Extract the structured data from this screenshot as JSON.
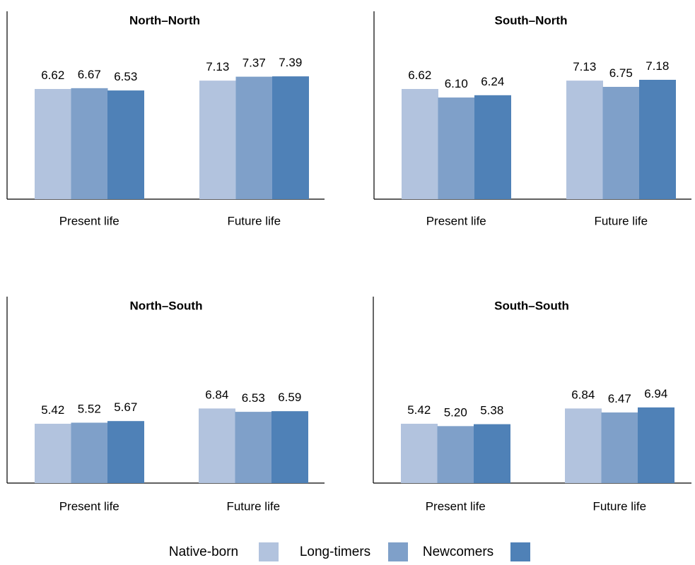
{
  "chart_data": [
    {
      "type": "bar",
      "title": "North–North",
      "categories": [
        "Present life",
        "Future life"
      ],
      "series": [
        {
          "name": "Native-born",
          "values": [
            6.62,
            7.13
          ]
        },
        {
          "name": "Long-timers",
          "values": [
            6.67,
            7.37
          ]
        },
        {
          "name": "Newcomers",
          "values": [
            6.53,
            7.39
          ]
        }
      ],
      "value_labels": [
        [
          "6.62",
          "6.67",
          "6.53"
        ],
        [
          "7.13",
          "7.37",
          "7.39"
        ]
      ]
    },
    {
      "type": "bar",
      "title": "South–North",
      "categories": [
        "Present life",
        "Future life"
      ],
      "series": [
        {
          "name": "Native-born",
          "values": [
            6.62,
            7.13
          ]
        },
        {
          "name": "Long-timers",
          "values": [
            6.1,
            6.75
          ]
        },
        {
          "name": "Newcomers",
          "values": [
            6.24,
            7.18
          ]
        }
      ],
      "value_labels": [
        [
          "6.62",
          "6.10",
          "6.24"
        ],
        [
          "7.13",
          "6.75",
          "7.18"
        ]
      ]
    },
    {
      "type": "bar",
      "title": "North–South",
      "categories": [
        "Present life",
        "Future life"
      ],
      "series": [
        {
          "name": "Native-born",
          "values": [
            5.42,
            6.84
          ]
        },
        {
          "name": "Long-timers",
          "values": [
            5.52,
            6.53
          ]
        },
        {
          "name": "Newcomers",
          "values": [
            5.67,
            6.59
          ]
        }
      ],
      "value_labels": [
        [
          "5.42",
          "5.52",
          "5.67"
        ],
        [
          "6.84",
          "6.53",
          "6.59"
        ]
      ]
    },
    {
      "type": "bar",
      "title": "South–South",
      "categories": [
        "Present life",
        "Future life"
      ],
      "series": [
        {
          "name": "Native-born",
          "values": [
            5.42,
            6.84
          ]
        },
        {
          "name": "Long-timers",
          "values": [
            5.2,
            6.47
          ]
        },
        {
          "name": "Newcomers",
          "values": [
            5.38,
            6.94
          ]
        }
      ],
      "value_labels": [
        [
          "5.42",
          "5.20",
          "5.38"
        ],
        [
          "6.84",
          "6.47",
          "6.94"
        ]
      ]
    }
  ],
  "legend": {
    "position": "bottom",
    "items": [
      {
        "label": "Native-born",
        "color": "#b2c3de"
      },
      {
        "label": "Long-timers",
        "color": "#7fa0c9"
      },
      {
        "label": "Newcomers",
        "color": "#4f81b7"
      }
    ]
  },
  "axis": {
    "grid": false
  }
}
